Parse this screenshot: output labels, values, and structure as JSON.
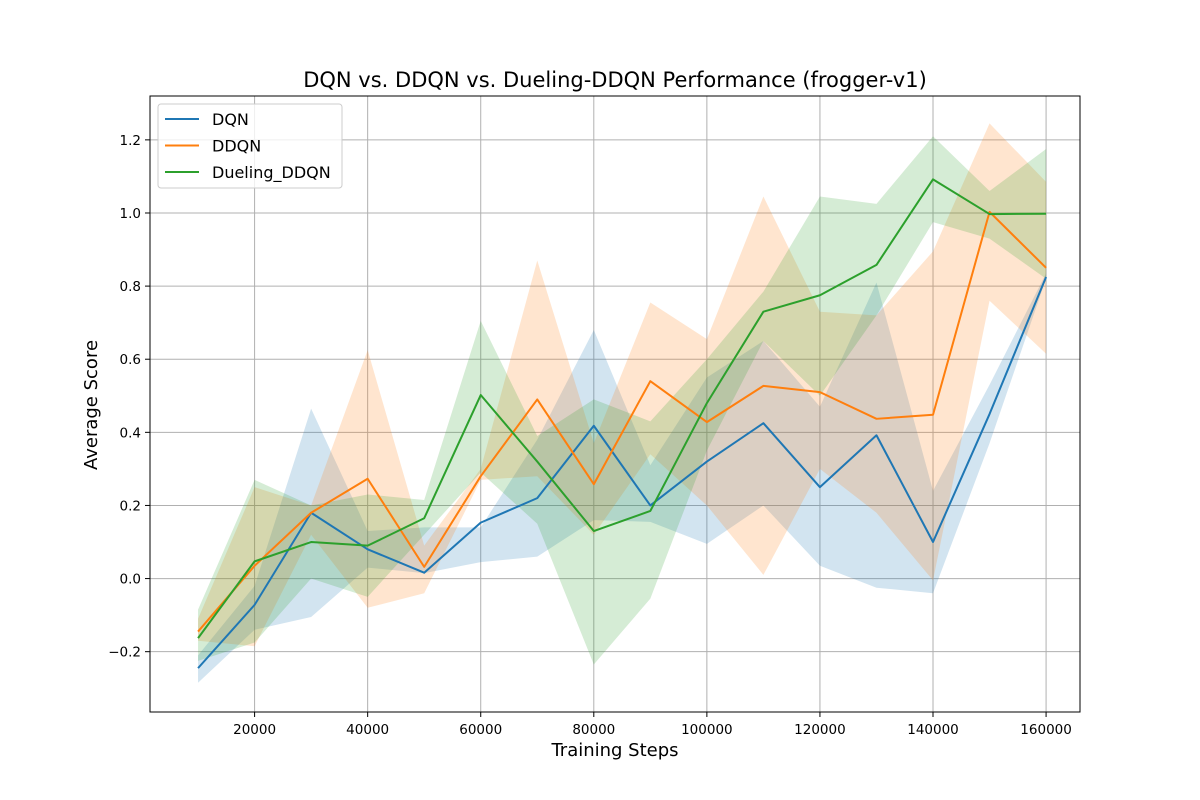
{
  "chart_data": {
    "type": "line",
    "title": "DQN vs. DDQN vs. Dueling-DDQN Performance (frogger-v1)",
    "xlabel": "Training Steps",
    "ylabel": "Average Score",
    "xlim": [
      1500,
      166000
    ],
    "ylim": [
      -0.365,
      1.32
    ],
    "xticks": [
      20000,
      40000,
      60000,
      80000,
      100000,
      120000,
      140000,
      160000
    ],
    "yticks": [
      -0.2,
      0.0,
      0.2,
      0.4,
      0.6,
      0.8,
      1.0,
      1.2
    ],
    "ytick_labels": [
      "−0.2",
      "0.0",
      "0.2",
      "0.4",
      "0.6",
      "0.8",
      "1.0",
      "1.2"
    ],
    "grid": true,
    "legend_position": "top-left",
    "x": [
      10000,
      20000,
      30000,
      40000,
      50000,
      60000,
      70000,
      80000,
      90000,
      100000,
      110000,
      120000,
      130000,
      140000,
      150000,
      160000
    ],
    "series": [
      {
        "name": "DQN",
        "color": "#1f77b4",
        "values": [
          -0.245,
          -0.072,
          0.18,
          0.08,
          0.016,
          0.153,
          0.22,
          0.418,
          0.2,
          0.32,
          0.425,
          0.25,
          0.392,
          0.1,
          0.45,
          0.825
        ],
        "lower": [
          -0.285,
          -0.14,
          -0.105,
          0.03,
          0.015,
          0.045,
          0.06,
          0.16,
          0.155,
          0.095,
          0.2,
          0.035,
          -0.025,
          -0.04,
          0.37,
          0.82
        ],
        "upper": [
          -0.21,
          -0.02,
          0.465,
          0.13,
          0.14,
          0.14,
          0.38,
          0.68,
          0.31,
          0.55,
          0.65,
          0.47,
          0.81,
          0.24,
          0.53,
          0.835
        ]
      },
      {
        "name": "DDQN",
        "color": "#ff7f0e",
        "values": [
          -0.145,
          0.035,
          0.18,
          0.273,
          0.032,
          0.28,
          0.49,
          0.258,
          0.54,
          0.428,
          0.527,
          0.51,
          0.437,
          0.448,
          1.003,
          0.85
        ],
        "lower": [
          -0.17,
          -0.185,
          0.12,
          -0.08,
          -0.04,
          0.27,
          0.28,
          0.12,
          0.34,
          0.2,
          0.01,
          0.3,
          0.18,
          -0.005,
          0.76,
          0.615
        ],
        "upper": [
          -0.11,
          0.25,
          0.2,
          0.625,
          0.09,
          0.3,
          0.87,
          0.37,
          0.755,
          0.655,
          1.045,
          0.73,
          0.72,
          0.895,
          1.245,
          1.085
        ]
      },
      {
        "name": "Dueling_DDQN",
        "color": "#2ca02c",
        "values": [
          -0.163,
          0.047,
          0.1,
          0.09,
          0.165,
          0.502,
          0.32,
          0.13,
          0.185,
          0.48,
          0.73,
          0.775,
          0.858,
          1.092,
          0.997,
          0.998
        ],
        "lower": [
          -0.225,
          -0.175,
          0.0,
          -0.05,
          0.12,
          0.29,
          0.15,
          -0.235,
          -0.055,
          0.35,
          0.65,
          0.5,
          0.72,
          0.975,
          0.93,
          0.82
        ],
        "upper": [
          -0.085,
          0.27,
          0.2,
          0.23,
          0.215,
          0.705,
          0.39,
          0.49,
          0.43,
          0.6,
          0.785,
          1.045,
          1.025,
          1.21,
          1.06,
          1.175
        ]
      }
    ]
  }
}
